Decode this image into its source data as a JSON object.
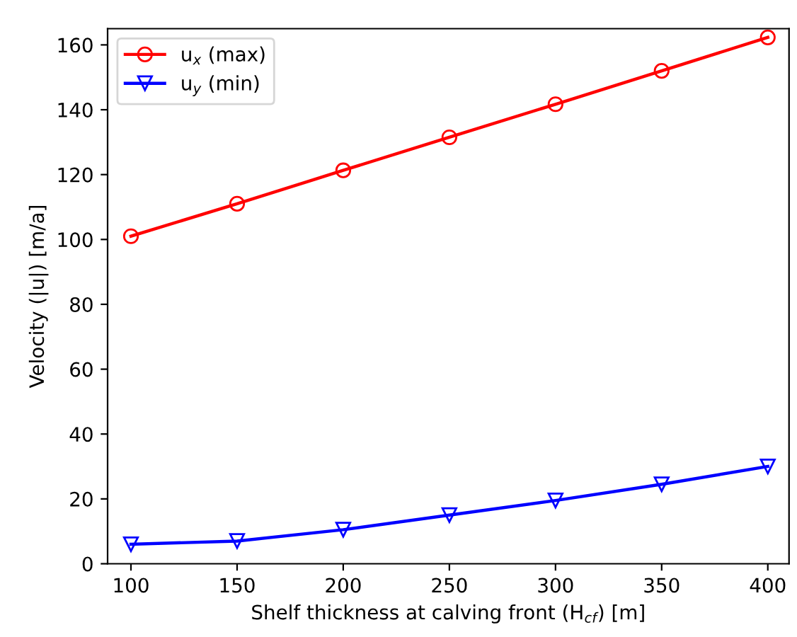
{
  "chart_data": {
    "type": "line",
    "xlabel": "Shelf thickness at calving front (H$_{cf}$) [m]",
    "ylabel": "Velocity (|u|) [m/a]",
    "x": [
      100,
      150,
      200,
      250,
      300,
      350,
      400
    ],
    "series": [
      {
        "name": "u$_{x}$ (max)",
        "color": "#ff0000",
        "marker": "circle",
        "values": [
          101,
          111,
          121.3,
          131.5,
          141.7,
          152,
          162.3
        ]
      },
      {
        "name": "u$_{y}$ (min)",
        "color": "#0000ff",
        "marker": "triangle",
        "values": [
          6,
          7,
          10.5,
          15,
          19.5,
          24.5,
          30
        ]
      }
    ],
    "xlim": [
      89,
      410
    ],
    "ylim": [
      0,
      165
    ],
    "xticks": [
      100,
      150,
      200,
      250,
      300,
      350,
      400
    ],
    "yticks": [
      0,
      20,
      40,
      60,
      80,
      100,
      120,
      140,
      160
    ],
    "legend": "top left",
    "line_style": "solid"
  }
}
